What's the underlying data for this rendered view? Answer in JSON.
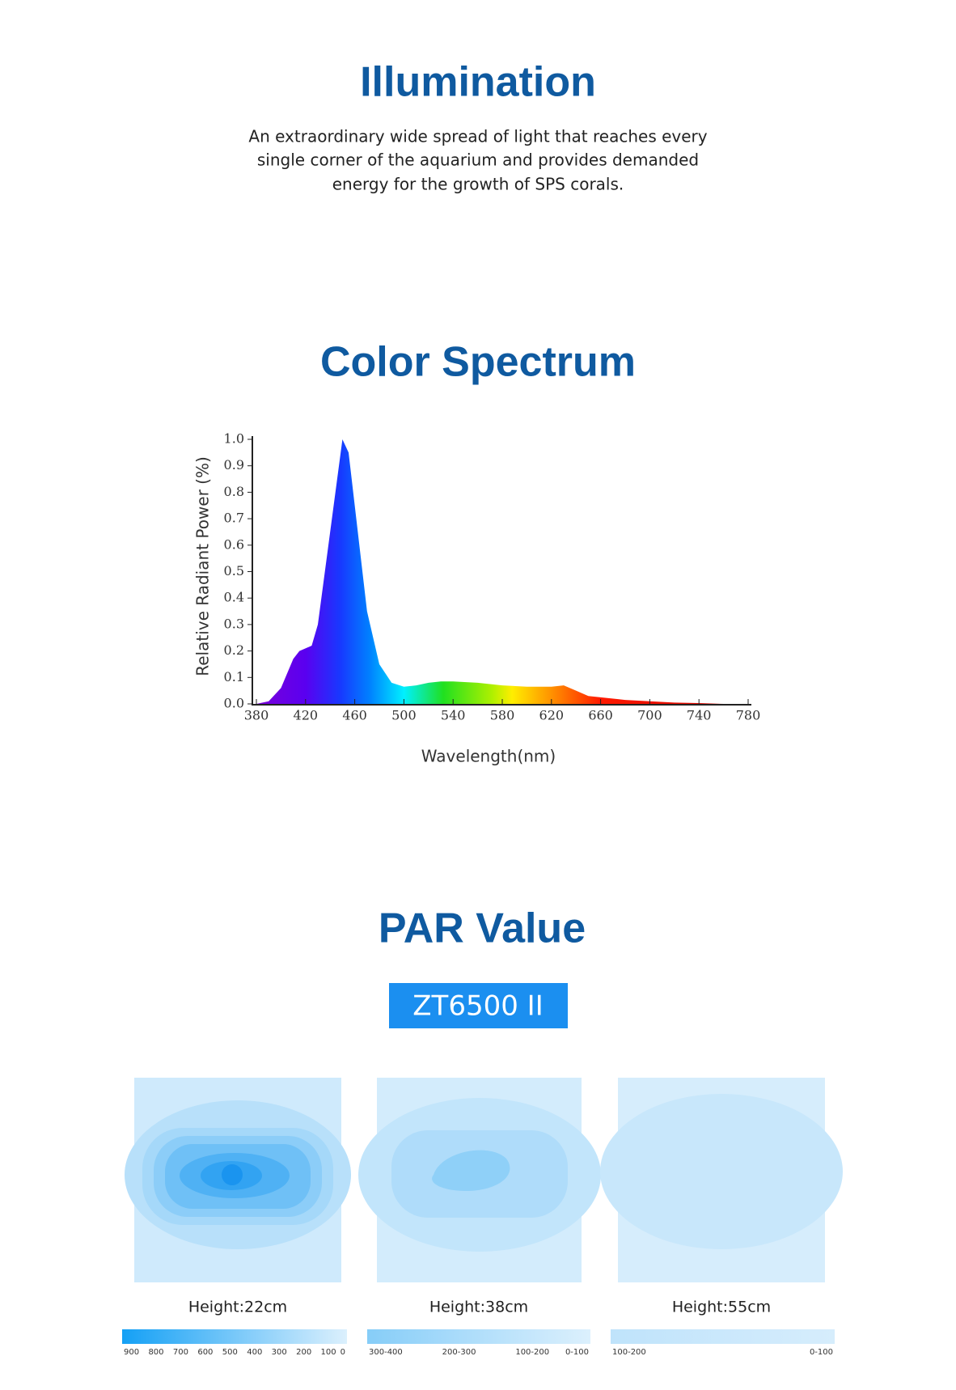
{
  "header": {
    "title": "Illumination",
    "lines": [
      "An extraordinary wide spread of light that reaches every",
      "single corner of the aquarium and provides demanded",
      "energy for the growth of SPS corals."
    ]
  },
  "chart_data": {
    "type": "area",
    "title": "Color Spectrum",
    "x_label": "Wavelength(nm)",
    "y_label": "Relative  Radiant  Power (%)",
    "x": [
      380,
      390,
      400,
      410,
      415,
      425,
      430,
      440,
      450,
      455,
      460,
      470,
      480,
      490,
      500,
      510,
      520,
      530,
      540,
      560,
      580,
      600,
      620,
      630,
      640,
      650,
      660,
      680,
      700,
      720,
      740,
      760,
      780
    ],
    "values": [
      0,
      0.01,
      0.06,
      0.17,
      0.2,
      0.22,
      0.3,
      0.65,
      1.0,
      0.95,
      0.75,
      0.35,
      0.15,
      0.08,
      0.065,
      0.07,
      0.08,
      0.085,
      0.085,
      0.08,
      0.07,
      0.065,
      0.065,
      0.07,
      0.05,
      0.03,
      0.025,
      0.015,
      0.01,
      0.005,
      0.003,
      0,
      0
    ],
    "xlim": [
      380,
      780
    ],
    "xticks": [
      380,
      420,
      460,
      500,
      540,
      580,
      620,
      660,
      700,
      740,
      780
    ],
    "ylim": [
      0,
      1
    ],
    "yticks": [
      {
        "value": 0,
        "label": "0.0"
      },
      0.1,
      0.2,
      0.3,
      0.4,
      0.5,
      0.6,
      0.7,
      0.8,
      0.9,
      {
        "value": 1,
        "label": "1.0"
      }
    ]
  },
  "par": {
    "title": "PAR Value",
    "model": "ZT6500 II",
    "panels": [
      {
        "label": "Height:22cm",
        "scale": [
          "900",
          "800",
          "700",
          "600",
          "500",
          "400",
          "300",
          "200",
          "100",
          "0"
        ]
      },
      {
        "label": "Height:38cm",
        "scale": [
          "300-400",
          "200-300",
          "100-200",
          "0-100"
        ]
      },
      {
        "label": "Height:55cm",
        "scale": [
          "100-200",
          "0-100"
        ]
      }
    ]
  }
}
